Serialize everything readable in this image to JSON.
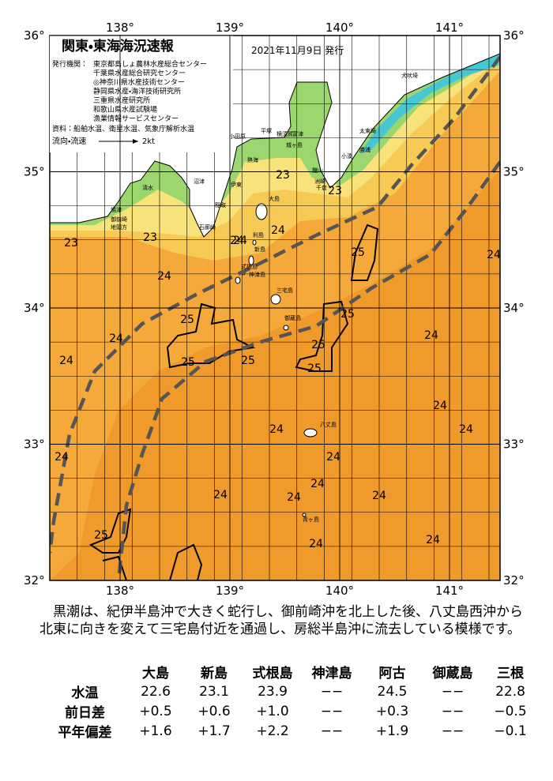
{
  "header": {
    "title": "関東・東海海況速報",
    "date": "2021年11月9日 発行",
    "issuer_label": "発行機関：",
    "issuers": [
      "東京都島しょ農林水産総合センター",
      "千葉県水産総合研究センター",
      "◎神奈川県水産技術センター",
      "静岡県水産・海洋技術研究所",
      "三重県水産研究所",
      "和歌山県水産試験場",
      "漁業情報サービスセンター"
    ],
    "sources": "資料：船舶水温、衛星水温、気象庁解析水温",
    "legend_label": "流向・流速",
    "legend_speed": "2kt"
  },
  "map": {
    "lon_ticks": [
      {
        "value": 138,
        "label": "138°"
      },
      {
        "value": 139,
        "label": "139°"
      },
      {
        "value": 140,
        "label": "140°"
      },
      {
        "value": 141,
        "label": "141°"
      }
    ],
    "lat_ticks": [
      {
        "value": 36,
        "label": "36°"
      },
      {
        "value": 35,
        "label": "35°"
      },
      {
        "value": 34,
        "label": "34°"
      },
      {
        "value": 33,
        "label": "33°"
      },
      {
        "value": 32,
        "label": "32°"
      }
    ],
    "contour_labels": [
      23,
      23,
      23,
      23,
      24,
      24,
      24,
      24,
      24,
      24,
      24,
      24,
      24,
      24,
      24,
      24,
      24,
      24,
      24,
      24,
      24,
      24,
      24,
      25,
      25,
      25,
      25,
      25,
      25,
      25,
      25
    ],
    "place_names": [
      "犬吠埼",
      "太東崎",
      "勝浦",
      "小湊",
      "洲崎",
      "館山",
      "千倉",
      "富津",
      "横須賀",
      "平塚",
      "城ヶ島",
      "小田原",
      "熱海",
      "伊東",
      "稲取",
      "石廊崎",
      "沼津",
      "清水",
      "焼津",
      "御前崎",
      "地頭方",
      "大島",
      "利島",
      "新島",
      "式根島",
      "神津島",
      "三宅島",
      "御蔵島",
      "八丈島",
      "青ヶ島"
    ]
  },
  "summary": "黒潮は、紀伊半島沖で大きく蛇行し、御前崎沖を北上した後、八丈島西沖から北東に向きを変えて三宅島付近を通過し、房総半島沖に流去している模様です。",
  "table": {
    "columns": [
      "大島",
      "新島",
      "式根島",
      "神津島",
      "阿古",
      "御蔵島",
      "三根"
    ],
    "rows": [
      {
        "label": "水温",
        "cells": [
          "22.6",
          "23.1",
          "23.9",
          "−−",
          "24.5",
          "−−",
          "22.8"
        ]
      },
      {
        "label": "前日差",
        "cells": [
          "+0.5",
          "+0.6",
          "+1.0",
          "−−",
          "+0.3",
          "−−",
          "−0.5"
        ]
      },
      {
        "label": "平年偏差",
        "cells": [
          "+1.6",
          "+1.7",
          "+2.2",
          "−−",
          "+1.9",
          "−−",
          "−0.1"
        ]
      }
    ]
  }
}
